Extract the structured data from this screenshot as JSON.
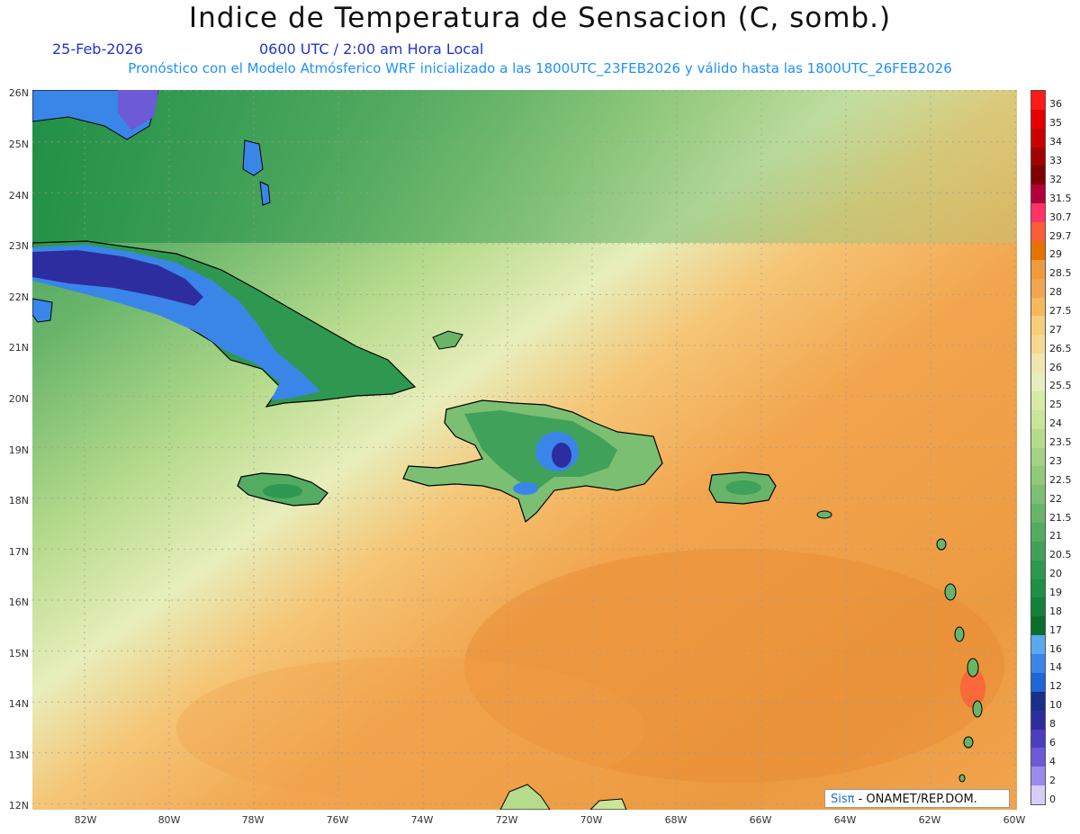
{
  "header": {
    "title": "Indice de Temperatura de Sensacion (C, somb.)",
    "date": "25-Feb-2026",
    "time": "0600 UTC / 2:00 am Hora Local",
    "model_line": "Pronóstico con el Modelo Atmósferico WRF inicializado a las 1800UTC_23FEB2026 y válido hasta las  1800UTC_26FEB2026"
  },
  "axes": {
    "lat_labels": [
      "26N",
      "25N",
      "24N",
      "23N",
      "22N",
      "21N",
      "20N",
      "19N",
      "18N",
      "17N",
      "16N",
      "15N",
      "14N",
      "13N",
      "12N"
    ],
    "lon_labels": [
      "82W",
      "80W",
      "78W",
      "76W",
      "74W",
      "72W",
      "70W",
      "68W",
      "66W",
      "64W",
      "62W",
      "60W"
    ]
  },
  "legend": {
    "labels": [
      "36",
      "35",
      "34",
      "33",
      "32",
      "31.5",
      "30.7",
      "29.7",
      "29",
      "28.5",
      "28",
      "27.5",
      "27",
      "26.5",
      "26",
      "25.5",
      "25",
      "24",
      "23.5",
      "23",
      "22.5",
      "22",
      "21.5",
      "21",
      "20.5",
      "20",
      "19",
      "18",
      "17",
      "16",
      "14",
      "12",
      "10",
      "8",
      "6",
      "4",
      "2",
      "0"
    ],
    "colors": [
      "#ff1a1a",
      "#e60000",
      "#cc0000",
      "#a30000",
      "#800000",
      "#b3003b",
      "#ff3366",
      "#ff5c3a",
      "#e67300",
      "#f09a3e",
      "#f2a54e",
      "#f5b95c",
      "#f7cc7a",
      "#f5d891",
      "#f2e6b0",
      "#e8eebb",
      "#d8eba5",
      "#c9e59a",
      "#b6db8c",
      "#a3d283",
      "#8fc97a",
      "#7bbf72",
      "#68b56a",
      "#54ab62",
      "#40a15a",
      "#2e9850",
      "#1f8f45",
      "#15803a",
      "#0a6e2f",
      "#5aa8f0",
      "#3a86e8",
      "#1f66d6",
      "#1a2e8c",
      "#2d2da0",
      "#4b3fbf",
      "#6c5ad6",
      "#9a8aec",
      "#d5ccf7"
    ]
  },
  "regions": {
    "cuba": "cuba",
    "hispaniola": "hispaniola",
    "jamaica": "jamaica",
    "puerto_rico": "puerto-rico"
  },
  "credit": {
    "brand": "Sisπ",
    "text": " - ONAMET/REP.DOM."
  }
}
